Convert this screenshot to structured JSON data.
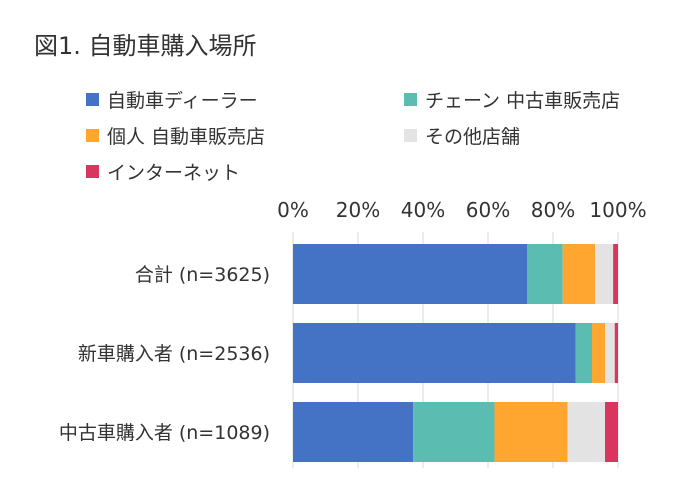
{
  "title": "図1. 自動車購入場所",
  "chart_data": {
    "type": "bar",
    "orientation": "horizontal",
    "stacked": true,
    "percent": true,
    "title": "図1. 自動車購入場所",
    "categories": [
      "合計 (n=3625)",
      "新車購入者 (n=2536)",
      "中古車購入者 (n=1089)"
    ],
    "series": [
      {
        "name": "自動車ディーラー",
        "color": "#4472C4",
        "values": [
          72,
          87,
          37
        ]
      },
      {
        "name": "チェーン 中古車販売店",
        "color": "#5BBCB2",
        "values": [
          11,
          5,
          25
        ]
      },
      {
        "name": "個人 自動車販売店",
        "color": "#FFA630",
        "values": [
          10,
          4,
          22.5
        ]
      },
      {
        "name": "その他店舗",
        "color": "#E3E3E3",
        "values": [
          5.5,
          3,
          11.5
        ]
      },
      {
        "name": "インターネット",
        "color": "#D8365E",
        "values": [
          1.5,
          1,
          4
        ]
      }
    ],
    "xticks": [
      "0%",
      "20%",
      "40%",
      "60%",
      "80%",
      "100%"
    ],
    "xlim": [
      0,
      100
    ],
    "legend_position": "top",
    "grid": true,
    "xlabel": "",
    "ylabel": ""
  }
}
